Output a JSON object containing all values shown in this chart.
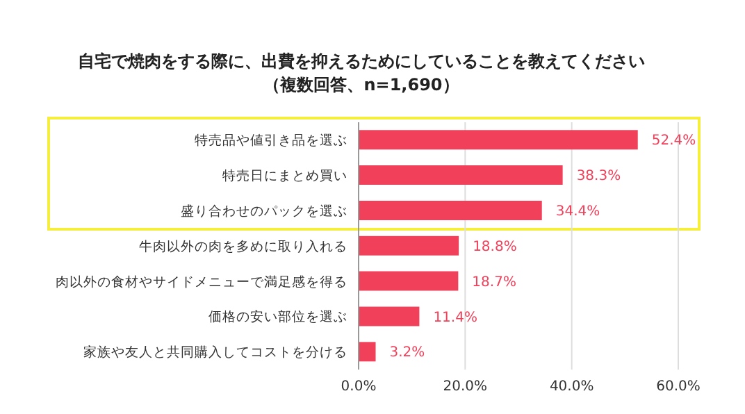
{
  "chart_data": {
    "type": "bar",
    "orientation": "horizontal",
    "title": "自宅で焼肉をする際に、出費を抑えるためにしていることを教えてください",
    "subtitle": "（複数回答、n=1,690）",
    "categories": [
      "特売品や値引き品を選ぶ",
      "特売日にまとめ買い",
      "盛り合わせのパックを選ぶ",
      "牛肉以外の肉を多めに取り入れる",
      "肉以外の食材やサイドメニューで満足感を得る",
      "価格の安い部位を選ぶ",
      "家族や友人と共同購入してコストを分ける"
    ],
    "values": [
      52.4,
      38.3,
      34.4,
      18.8,
      18.7,
      11.4,
      3.2
    ],
    "value_labels": [
      "52.4%",
      "38.3%",
      "34.4%",
      "18.8%",
      "18.7%",
      "11.4%",
      "3.2%"
    ],
    "color": "#f0405a",
    "xlim": [
      0,
      60
    ],
    "xticks": [
      {
        "value": 0,
        "label": "0.0%"
      },
      {
        "value": 20,
        "label": "20.0%"
      },
      {
        "value": 40,
        "label": "40.0%"
      },
      {
        "value": 60,
        "label": "60.0%"
      }
    ],
    "grid": "x"
  }
}
